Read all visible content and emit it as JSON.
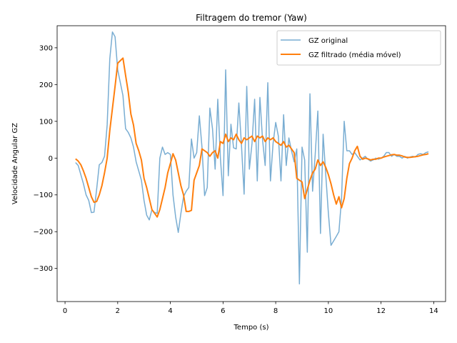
{
  "chart_data": {
    "type": "line",
    "title": "Filtragem do tremor (Yaw)",
    "xlabel": "Tempo (s)",
    "ylabel": "Velocidade Angular GZ",
    "xlim": [
      -0.3,
      14.45
    ],
    "ylim": [
      -390,
      360
    ],
    "xticks": [
      0,
      2,
      4,
      6,
      8,
      10,
      12,
      14
    ],
    "yticks": [
      -300,
      -200,
      -100,
      0,
      100,
      200,
      300
    ],
    "grid": false,
    "legend_position": "top-right",
    "series": [
      {
        "name": "GZ original",
        "color": "#1f77b4",
        "opacity": 0.6,
        "line_width": 1.5,
        "x": [
          0.4,
          0.5,
          0.6,
          0.7,
          0.8,
          0.9,
          1.0,
          1.1,
          1.2,
          1.3,
          1.4,
          1.5,
          1.6,
          1.7,
          1.8,
          1.9,
          2.0,
          2.1,
          2.2,
          2.3,
          2.4,
          2.5,
          2.6,
          2.7,
          2.8,
          2.9,
          3.0,
          3.1,
          3.2,
          3.3,
          3.4,
          3.5,
          3.6,
          3.7,
          3.8,
          3.9,
          4.0,
          4.1,
          4.2,
          4.3,
          4.4,
          4.5,
          4.6,
          4.7,
          4.8,
          4.9,
          5.0,
          5.1,
          5.2,
          5.3,
          5.4,
          5.5,
          5.6,
          5.7,
          5.8,
          5.9,
          6.0,
          6.1,
          6.2,
          6.3,
          6.4,
          6.5,
          6.6,
          6.7,
          6.8,
          6.9,
          7.0,
          7.1,
          7.2,
          7.3,
          7.4,
          7.5,
          7.6,
          7.7,
          7.8,
          7.9,
          8.0,
          8.1,
          8.2,
          8.3,
          8.4,
          8.5,
          8.6,
          8.7,
          8.8,
          8.9,
          9.0,
          9.1,
          9.2,
          9.3,
          9.4,
          9.5,
          9.6,
          9.7,
          9.8,
          9.9,
          10.0,
          10.1,
          10.2,
          10.3,
          10.4,
          10.5,
          10.6,
          10.7,
          10.8,
          10.9,
          11.0,
          11.1,
          11.2,
          11.3,
          11.4,
          11.5,
          11.6,
          11.7,
          11.8,
          11.9,
          12.0,
          12.1,
          12.2,
          12.3,
          12.4,
          12.5,
          12.6,
          12.7,
          12.8,
          12.9,
          13.0,
          13.1,
          13.2,
          13.3,
          13.4,
          13.5,
          13.6,
          13.7,
          13.8
        ],
        "y": [
          -12,
          -20,
          -45,
          -70,
          -100,
          -115,
          -148,
          -147,
          -85,
          -18,
          -12,
          5,
          90,
          270,
          343,
          330,
          240,
          205,
          170,
          80,
          70,
          55,
          30,
          -10,
          -35,
          -60,
          -115,
          -155,
          -168,
          -140,
          -148,
          -150,
          0,
          30,
          10,
          15,
          10,
          -100,
          -160,
          -202,
          -150,
          -105,
          -90,
          -80,
          52,
          0,
          15,
          115,
          30,
          -102,
          -80,
          136,
          80,
          -30,
          160,
          0,
          -102,
          240,
          -48,
          92,
          28,
          25,
          150,
          35,
          -98,
          195,
          -30,
          40,
          160,
          -62,
          165,
          50,
          -20,
          205,
          -62,
          40,
          97,
          60,
          -62,
          118,
          -20,
          55,
          20,
          -10,
          25,
          -342,
          30,
          -5,
          -256,
          175,
          -90,
          10,
          128,
          -205,
          65,
          -45,
          -150,
          -237,
          -225,
          -213,
          -200,
          -110,
          100,
          20,
          20,
          10,
          15,
          5,
          -5,
          0,
          5,
          -3,
          -8,
          -5,
          0,
          -3,
          0,
          5,
          15,
          15,
          5,
          10,
          5,
          5,
          0,
          5,
          0,
          3,
          5,
          3,
          10,
          12,
          10,
          15,
          17
        ]
      },
      {
        "name": "GZ filtrado (média móvel)",
        "color": "#ff7f0e",
        "opacity": 1,
        "line_width": 2,
        "x": [
          0.4,
          0.5,
          0.6,
          0.7,
          0.8,
          0.9,
          1.0,
          1.1,
          1.2,
          1.3,
          1.4,
          1.5,
          1.6,
          1.7,
          1.8,
          1.9,
          2.0,
          2.1,
          2.2,
          2.3,
          2.4,
          2.5,
          2.6,
          2.7,
          2.8,
          2.9,
          3.0,
          3.1,
          3.2,
          3.3,
          3.4,
          3.5,
          3.6,
          3.7,
          3.8,
          3.9,
          4.0,
          4.1,
          4.2,
          4.3,
          4.4,
          4.5,
          4.6,
          4.7,
          4.8,
          4.9,
          5.0,
          5.1,
          5.2,
          5.3,
          5.4,
          5.5,
          5.6,
          5.7,
          5.8,
          5.9,
          6.0,
          6.1,
          6.2,
          6.3,
          6.4,
          6.5,
          6.6,
          6.7,
          6.8,
          6.9,
          7.0,
          7.1,
          7.2,
          7.3,
          7.4,
          7.5,
          7.6,
          7.7,
          7.8,
          7.9,
          8.0,
          8.1,
          8.2,
          8.3,
          8.4,
          8.5,
          8.6,
          8.7,
          8.8,
          8.9,
          9.0,
          9.1,
          9.2,
          9.3,
          9.4,
          9.5,
          9.6,
          9.7,
          9.8,
          9.9,
          10.0,
          10.1,
          10.2,
          10.3,
          10.4,
          10.5,
          10.6,
          10.7,
          10.8,
          10.9,
          11.0,
          11.1,
          11.2,
          11.3,
          11.4,
          11.5,
          11.6,
          11.7,
          11.8,
          11.9,
          12.0,
          12.1,
          12.2,
          12.3,
          12.4,
          12.5,
          12.6,
          12.7,
          12.8,
          12.9,
          13.0,
          13.1,
          13.2,
          13.3,
          13.4,
          13.5,
          13.6,
          13.7,
          13.8
        ],
        "y": [
          -2,
          -8,
          -18,
          -35,
          -55,
          -80,
          -105,
          -120,
          -118,
          -100,
          -75,
          -40,
          0,
          75,
          135,
          195,
          258,
          265,
          272,
          225,
          180,
          120,
          90,
          40,
          20,
          -5,
          -55,
          -80,
          -110,
          -140,
          -150,
          -160,
          -140,
          -110,
          -80,
          -40,
          -15,
          12,
          -5,
          -40,
          -75,
          -100,
          -145,
          -145,
          -142,
          -60,
          -40,
          -20,
          25,
          20,
          15,
          5,
          15,
          20,
          0,
          45,
          40,
          65,
          45,
          55,
          50,
          65,
          50,
          40,
          55,
          50,
          55,
          60,
          45,
          60,
          55,
          60,
          45,
          55,
          50,
          55,
          45,
          40,
          35,
          45,
          30,
          35,
          25,
          15,
          -55,
          -60,
          -65,
          -110,
          -85,
          -60,
          -40,
          -30,
          -5,
          -20,
          -10,
          -25,
          -45,
          -70,
          -100,
          -125,
          -105,
          -135,
          -110,
          -55,
          -15,
          0,
          20,
          32,
          5,
          -3,
          0,
          -2,
          -5,
          -3,
          -3,
          0,
          0,
          3,
          5,
          7,
          9,
          10,
          8,
          8,
          6,
          3,
          2,
          2,
          3,
          4,
          5,
          7,
          9,
          10,
          12
        ]
      }
    ]
  }
}
